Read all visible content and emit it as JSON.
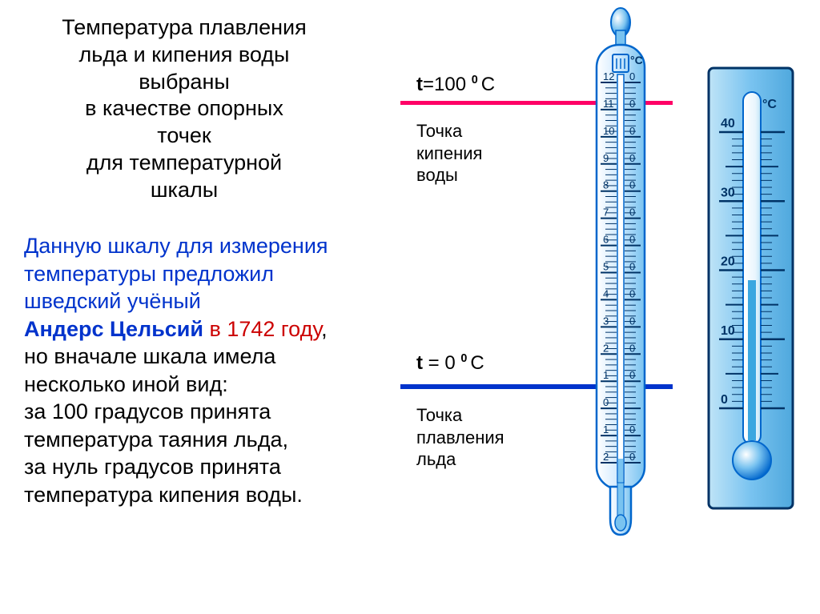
{
  "text1": {
    "l1": "Температура плавления",
    "l2": "льда и кипения воды",
    "l3": "выбраны",
    "l4": "в качестве опорных",
    "l5": "точек",
    "l6": "для температурной",
    "l7": "шкалы"
  },
  "text2": {
    "l1": "Данную шкалу для измерения",
    "l2": "температуры предложил",
    "l3": "шведский учёный",
    "author": "Андерс Цельсий",
    "year_phrase": " в 1742 году",
    "comma": ",",
    "l5": "но вначале  шкала имела",
    "l6": "несколько иной вид:",
    "l7": "за 100 градусов принята",
    "l8": "температура таяния льда,",
    "l9": "за нуль градусов принята",
    "l10": "температура кипения воды."
  },
  "boiling": {
    "formula_t": "t",
    "formula_rest": "=100 ",
    "formula_exp": "0 ",
    "formula_unit": "С",
    "name_l1": "Точка",
    "name_l2": "кипения",
    "name_l3": "воды"
  },
  "melting": {
    "formula_t": "t",
    "formula_rest": " = 0 ",
    "formula_exp": "0 ",
    "formula_unit": "С",
    "name_l1": "Точка",
    "name_l2": "плавления",
    "name_l3": "льда"
  },
  "therm1": {
    "unit": "°C",
    "ticks": [
      "12",
      "11",
      "10",
      "9",
      "8",
      "7",
      "6",
      "5",
      "4",
      "3",
      "2",
      "1",
      "0",
      "1",
      "2"
    ],
    "zeros": [
      "0",
      "0",
      "0",
      "0",
      "0",
      "0",
      "0",
      "0",
      "0",
      "0",
      "0",
      "0",
      "",
      "0",
      "0"
    ],
    "colors": {
      "outline": "#0066cc",
      "fill_light": "#d6ecff",
      "fill_mid": "#79c3f0",
      "mercury": "#79c3f0",
      "tick": "#003366"
    }
  },
  "therm2": {
    "unit": "°C",
    "ticks": [
      "40",
      "30",
      "20",
      "10",
      "0"
    ],
    "colors": {
      "panel": "#79c3f0",
      "outline": "#0066cc",
      "tube": "#ffffff",
      "mercury": "#3ba7e0",
      "tick": "#003366",
      "border": "#003366"
    }
  },
  "lines": {
    "red": "#ff0066",
    "blue": "#0033cc"
  }
}
